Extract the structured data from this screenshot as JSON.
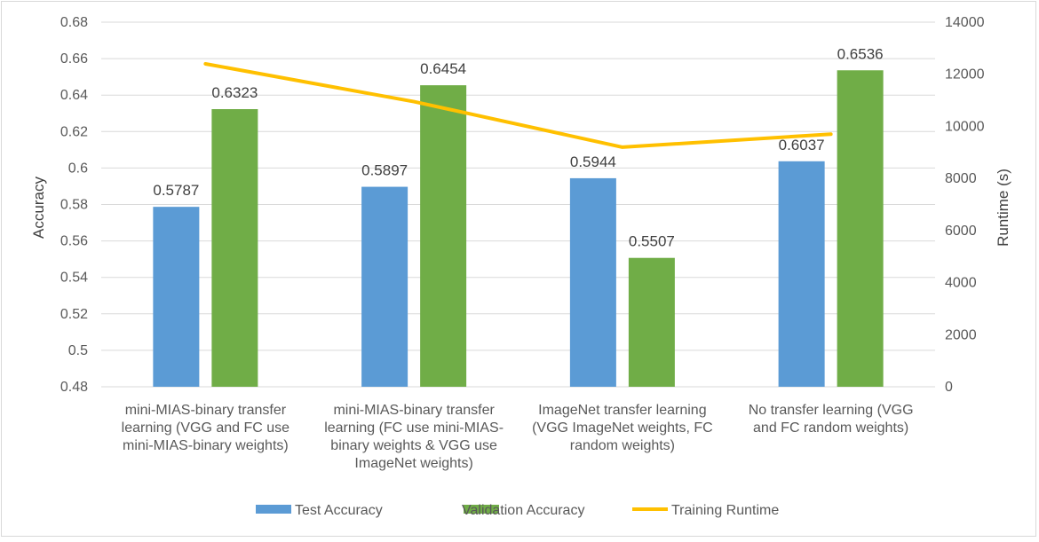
{
  "chart_data": {
    "type": "bar",
    "categories": [
      [
        "mini-MIAS-binary transfer",
        "learning (VGG and FC use",
        "mini-MIAS-binary weights)"
      ],
      [
        "mini-MIAS-binary transfer",
        "learning (FC use mini-MIAS-",
        "binary weights & VGG use",
        "ImageNet weights)"
      ],
      [
        "ImageNet transfer learning",
        "(VGG ImageNet weights, FC",
        "random weights)"
      ],
      [
        "No transfer learning (VGG",
        "and FC random weights)"
      ]
    ],
    "series": [
      {
        "name": "Test Accuracy",
        "type": "bar",
        "axis": "left",
        "color": "#5b9bd5",
        "values": [
          0.5787,
          0.5897,
          0.5944,
          0.6037
        ]
      },
      {
        "name": "Validation Accuracy",
        "type": "bar",
        "axis": "left",
        "color": "#70ad47",
        "values": [
          0.6323,
          0.6454,
          0.5507,
          0.6536
        ]
      },
      {
        "name": "Training Runtime",
        "type": "line",
        "axis": "right",
        "color": "#ffc000",
        "values": [
          12400,
          10950,
          9200,
          9700
        ]
      }
    ],
    "data_labels": [
      [
        "0.5787",
        "0.5897",
        "0.5944",
        "0.6037"
      ],
      [
        "0.6323",
        "0.6454",
        "0.5507",
        "0.6536"
      ]
    ],
    "ylabel": "Accuracy",
    "y2label": "Runtime (s)",
    "ylim": [
      0.48,
      0.68
    ],
    "y2lim": [
      0,
      14000
    ],
    "y_ticks": [
      "0.48",
      "0.5",
      "0.52",
      "0.54",
      "0.56",
      "0.58",
      "0.6",
      "0.62",
      "0.64",
      "0.66",
      "0.68"
    ],
    "y2_ticks": [
      "0",
      "2000",
      "4000",
      "6000",
      "8000",
      "10000",
      "12000",
      "14000"
    ],
    "grid": true,
    "legend_position": "bottom"
  }
}
